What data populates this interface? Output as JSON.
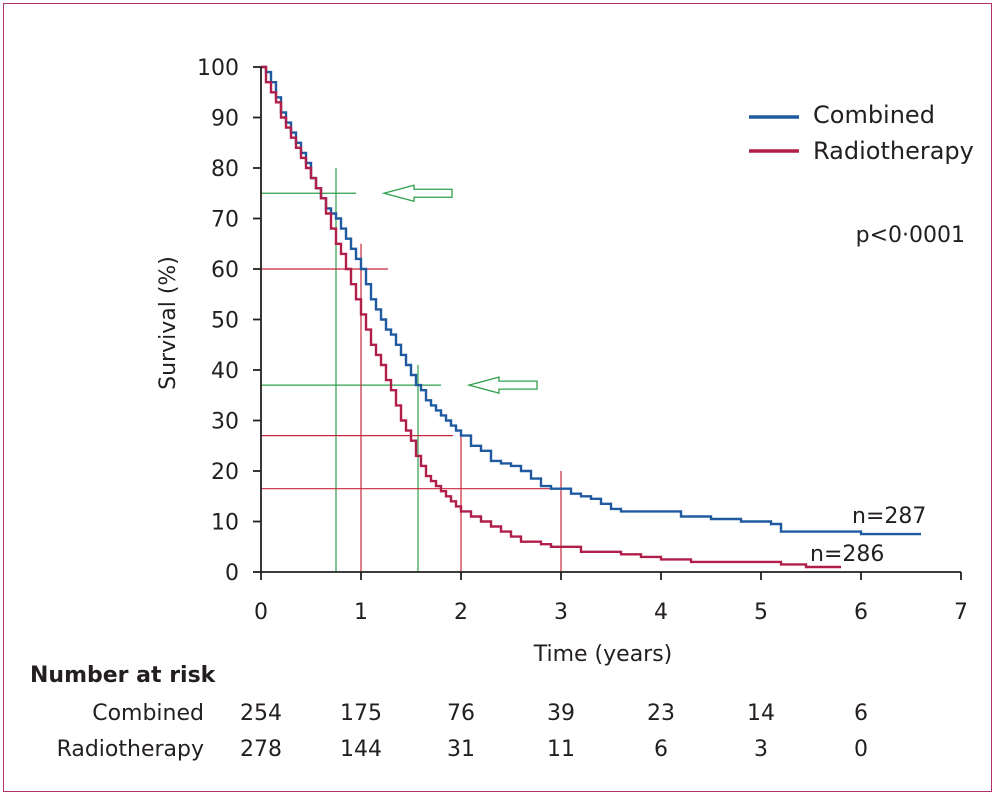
{
  "chart_data": {
    "type": "line",
    "title": "",
    "xlabel": "Time (years)",
    "ylabel": "Survival (%)",
    "xlim": [
      0,
      7
    ],
    "ylim": [
      0,
      100
    ],
    "xticks": [
      "0",
      "1",
      "2",
      "3",
      "4",
      "5",
      "6",
      "7"
    ],
    "yticks": [
      "0",
      "10",
      "20",
      "30",
      "40",
      "50",
      "60",
      "70",
      "80",
      "90",
      "100"
    ],
    "legend_position": "top-right",
    "p_value": "p<0·0001",
    "series": [
      {
        "name": "Combined",
        "color": "#1f5aa0",
        "end_label": "n=287",
        "x": [
          0,
          0.05,
          0.1,
          0.15,
          0.2,
          0.25,
          0.3,
          0.35,
          0.4,
          0.45,
          0.5,
          0.55,
          0.6,
          0.65,
          0.7,
          0.75,
          0.8,
          0.85,
          0.9,
          0.95,
          1.0,
          1.05,
          1.1,
          1.15,
          1.2,
          1.25,
          1.3,
          1.35,
          1.4,
          1.45,
          1.5,
          1.55,
          1.6,
          1.65,
          1.7,
          1.75,
          1.8,
          1.85,
          1.9,
          1.95,
          2.0,
          2.1,
          2.2,
          2.3,
          2.4,
          2.5,
          2.6,
          2.7,
          2.8,
          2.9,
          3.0,
          3.1,
          3.2,
          3.3,
          3.4,
          3.5,
          3.6,
          3.8,
          4.0,
          4.2,
          4.5,
          4.8,
          5.0,
          5.1,
          5.2,
          5.5,
          6.0,
          6.6
        ],
        "y": [
          100,
          99,
          97,
          94,
          91,
          89,
          87,
          85,
          83,
          81,
          78,
          76,
          74,
          72,
          71,
          70,
          68,
          66,
          64,
          62,
          60,
          57,
          54,
          52,
          50,
          48,
          47,
          45,
          43,
          41,
          39,
          37,
          36,
          34,
          33,
          32,
          31,
          30,
          29,
          28,
          27,
          25,
          24,
          22,
          21.5,
          21,
          20,
          18.5,
          17,
          16.5,
          16.5,
          15.5,
          15,
          14.5,
          13.5,
          12.5,
          12,
          12,
          12,
          11,
          10.5,
          10,
          10,
          9.5,
          8,
          8,
          7.5,
          7.5
        ]
      },
      {
        "name": "Radiotherapy",
        "color": "#b01e4a",
        "end_label": "n=286",
        "x": [
          0,
          0.05,
          0.1,
          0.15,
          0.2,
          0.25,
          0.3,
          0.35,
          0.4,
          0.45,
          0.5,
          0.55,
          0.6,
          0.65,
          0.7,
          0.75,
          0.8,
          0.85,
          0.9,
          0.95,
          1.0,
          1.05,
          1.1,
          1.15,
          1.2,
          1.25,
          1.3,
          1.35,
          1.4,
          1.45,
          1.5,
          1.55,
          1.6,
          1.65,
          1.7,
          1.75,
          1.8,
          1.85,
          1.9,
          1.95,
          2.0,
          2.1,
          2.2,
          2.3,
          2.4,
          2.5,
          2.6,
          2.7,
          2.8,
          2.9,
          3.0,
          3.2,
          3.4,
          3.6,
          3.8,
          4.0,
          4.3,
          4.6,
          4.8,
          5.0,
          5.2,
          5.45,
          5.8
        ],
        "y": [
          100,
          97,
          95,
          93,
          90,
          88,
          86,
          84,
          82,
          80,
          78,
          76,
          74,
          71,
          68,
          65,
          63,
          60,
          57,
          54,
          51,
          48,
          45,
          43,
          41,
          38,
          36,
          33,
          30,
          28,
          26,
          23,
          21,
          19,
          18,
          17,
          16,
          15,
          14,
          13,
          12,
          11,
          10,
          9,
          8,
          7,
          6,
          6,
          5.5,
          5,
          5,
          4,
          4,
          3.5,
          3,
          2.5,
          2,
          2,
          2,
          2,
          1.5,
          1,
          1
        ]
      }
    ],
    "reference_lines": [
      {
        "color": "#2ea04a",
        "kind": "horizontal",
        "y": 75,
        "x_from": 0,
        "x_to": 0.95
      },
      {
        "color": "#2ea04a",
        "kind": "horizontal",
        "y": 37,
        "x_from": 0,
        "x_to": 1.8
      },
      {
        "color": "#2ea04a",
        "kind": "vertical",
        "x": 0.75,
        "y_from": 0,
        "y_to": 80
      },
      {
        "color": "#2ea04a",
        "kind": "vertical",
        "x": 1.57,
        "y_from": 0,
        "y_to": 41
      },
      {
        "color": "#c8283c",
        "kind": "horizontal",
        "y": 60,
        "x_from": 0,
        "x_to": 1.27
      },
      {
        "color": "#c8283c",
        "kind": "horizontal",
        "y": 27,
        "x_from": 0,
        "x_to": 1.92
      },
      {
        "color": "#c8283c",
        "kind": "horizontal",
        "y": 16.5,
        "x_from": 0,
        "x_to": 3.0
      },
      {
        "color": "#c8283c",
        "kind": "vertical",
        "x": 1.0,
        "y_from": 0,
        "y_to": 65
      },
      {
        "color": "#c8283c",
        "kind": "vertical",
        "x": 2.0,
        "y_from": 0,
        "y_to": 27
      },
      {
        "color": "#c8283c",
        "kind": "vertical",
        "x": 3.0,
        "y_from": 0,
        "y_to": 20
      }
    ],
    "arrows": [
      {
        "color": "#2ea04a",
        "y": 75,
        "direction": "left"
      },
      {
        "color": "#2ea04a",
        "y": 37,
        "direction": "left"
      }
    ]
  },
  "risk_table": {
    "title": "Number at risk",
    "rows": [
      {
        "label": "Combined",
        "values": [
          "254",
          "175",
          "76",
          "39",
          "23",
          "14",
          "6"
        ]
      },
      {
        "label": "Radiotherapy",
        "values": [
          "278",
          "144",
          "31",
          "11",
          "6",
          "3",
          "0"
        ]
      }
    ]
  }
}
